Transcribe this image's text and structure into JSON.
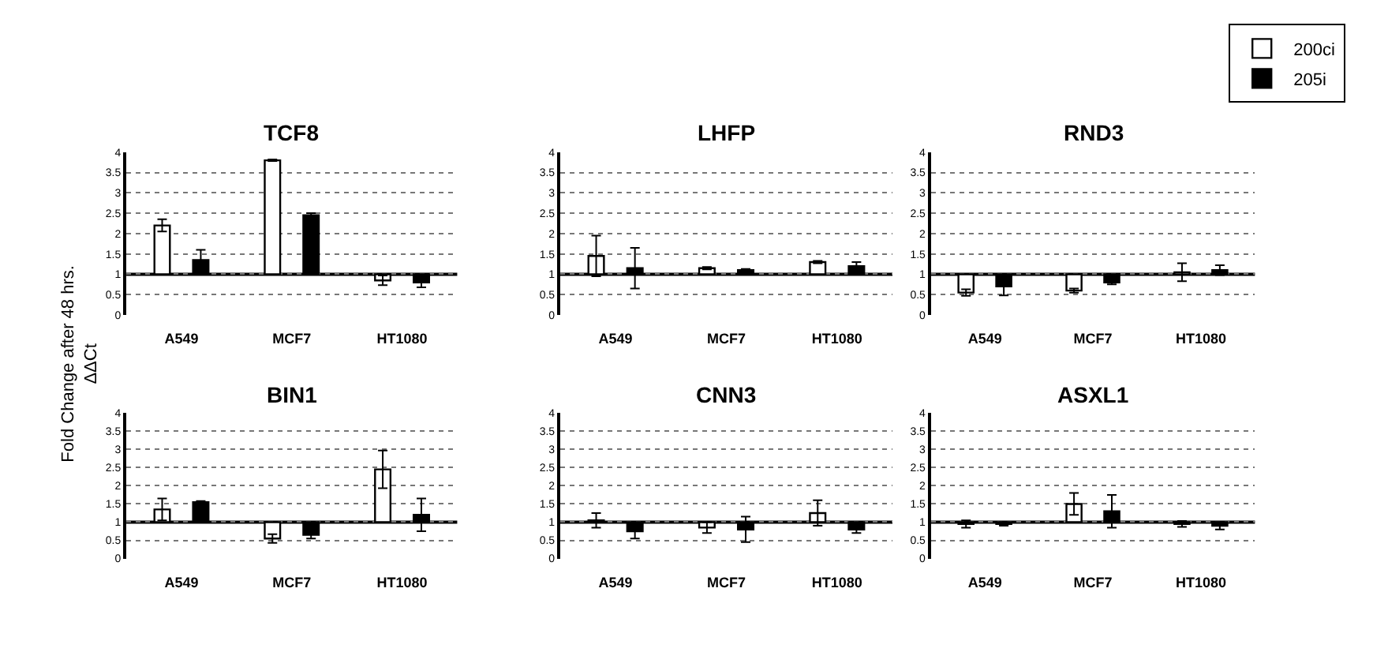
{
  "chart_data": [
    {
      "type": "bar",
      "title": "TCF8",
      "ylabel": "Fold Change after 48 hrs.\nΔΔCt",
      "categories": [
        "A549",
        "MCF7",
        "HT1080"
      ],
      "ylim": [
        0,
        4
      ],
      "yticks": [
        0,
        0.5,
        1,
        1.5,
        2,
        2.5,
        3,
        3.5,
        4
      ],
      "grid": "y",
      "legend": "top right",
      "ref_lines": [
        {
          "axis": "y",
          "value": 1,
          "color": "#000000"
        }
      ],
      "series": [
        {
          "name": "200ci",
          "color": "#ffffff",
          "base": [
            1,
            1,
            1
          ],
          "values": [
            1.2,
            2.8,
            -0.15
          ],
          "errors": [
            0.15,
            0.02,
            0.12
          ]
        },
        {
          "name": "205i",
          "color": "#000000",
          "base": [
            1,
            1,
            1
          ],
          "values": [
            0.35,
            1.45,
            -0.2
          ],
          "errors": [
            0.25,
            0.05,
            0.12
          ]
        }
      ]
    },
    {
      "type": "bar",
      "title": "LHFP",
      "categories": [
        "A549",
        "MCF7",
        "HT1080"
      ],
      "ylim": [
        0,
        4
      ],
      "yticks": [
        0,
        0.5,
        1,
        1.5,
        2,
        2.5,
        3,
        3.5,
        4
      ],
      "grid": "y",
      "ref_lines": [
        {
          "axis": "y",
          "value": 1,
          "color": "#000000"
        }
      ],
      "series": [
        {
          "color": "#ffffff",
          "base": [
            1,
            1,
            1
          ],
          "values": [
            0.45,
            0.15,
            0.3
          ],
          "errors": [
            0.5,
            0.03,
            0.03
          ]
        },
        {
          "color": "#000000",
          "base": [
            1,
            1,
            1
          ],
          "values": [
            0.15,
            0.1,
            0.2
          ],
          "errors": [
            0.5,
            0.03,
            0.1
          ]
        }
      ]
    },
    {
      "type": "bar",
      "title": "RND3",
      "categories": [
        "A549",
        "MCF7",
        "HT1080"
      ],
      "ylim": [
        0,
        4
      ],
      "yticks": [
        0,
        0.5,
        1,
        1.5,
        2,
        2.5,
        3,
        3.5,
        4
      ],
      "grid": "y",
      "ref_lines": [
        {
          "axis": "y",
          "value": 1,
          "color": "#000000"
        }
      ],
      "series": [
        {
          "color": "#ffffff",
          "base": [
            1,
            1,
            1
          ],
          "values": [
            -0.45,
            -0.4,
            0.05
          ],
          "errors": [
            0.08,
            0.05,
            0.22
          ]
        },
        {
          "color": "#000000",
          "base": [
            1,
            1,
            1
          ],
          "values": [
            -0.3,
            -0.2,
            0.1
          ],
          "errors": [
            0.22,
            0.05,
            0.12
          ]
        }
      ]
    },
    {
      "type": "bar",
      "title": "BIN1",
      "categories": [
        "A549",
        "MCF7",
        "HT1080"
      ],
      "ylim": [
        0,
        4
      ],
      "yticks": [
        0,
        0.5,
        1,
        1.5,
        2,
        2.5,
        3,
        3.5,
        4
      ],
      "grid": "y",
      "ref_lines": [
        {
          "axis": "y",
          "value": 1,
          "color": "#000000"
        }
      ],
      "series": [
        {
          "color": "#ffffff",
          "base": [
            1,
            1,
            1
          ],
          "values": [
            0.35,
            -0.45,
            1.45
          ],
          "errors": [
            0.3,
            0.12,
            0.52
          ]
        },
        {
          "color": "#000000",
          "base": [
            1,
            1,
            1
          ],
          "values": [
            0.55,
            -0.35,
            0.2
          ],
          "errors": [
            0.03,
            0.1,
            0.45
          ]
        }
      ]
    },
    {
      "type": "bar",
      "title": "CNN3",
      "categories": [
        "A549",
        "MCF7",
        "HT1080"
      ],
      "ylim": [
        0,
        4
      ],
      "yticks": [
        0,
        0.5,
        1,
        1.5,
        2,
        2.5,
        3,
        3.5,
        4
      ],
      "grid": "y",
      "ref_lines": [
        {
          "axis": "y",
          "value": 1,
          "color": "#000000"
        }
      ],
      "series": [
        {
          "color": "#ffffff",
          "base": [
            1,
            1,
            1
          ],
          "values": [
            0.05,
            -0.15,
            0.25
          ],
          "errors": [
            0.2,
            0.15,
            0.35
          ]
        },
        {
          "color": "#000000",
          "base": [
            1,
            1,
            1
          ],
          "values": [
            -0.25,
            -0.2,
            -0.2
          ],
          "errors": [
            0.2,
            0.35,
            0.1
          ]
        }
      ]
    },
    {
      "type": "bar",
      "title": "ASXL1",
      "categories": [
        "A549",
        "MCF7",
        "HT1080"
      ],
      "ylim": [
        0,
        4
      ],
      "yticks": [
        0,
        0.5,
        1,
        1.5,
        2,
        2.5,
        3,
        3.5,
        4
      ],
      "grid": "y",
      "ref_lines": [
        {
          "axis": "y",
          "value": 1,
          "color": "#000000"
        }
      ],
      "series": [
        {
          "color": "#ffffff",
          "base": [
            1,
            1,
            1
          ],
          "values": [
            -0.05,
            0.5,
            -0.05
          ],
          "errors": [
            0.1,
            0.3,
            0.08
          ]
        },
        {
          "color": "#000000",
          "base": [
            1,
            1,
            1
          ],
          "values": [
            -0.05,
            0.3,
            -0.1
          ],
          "errors": [
            0.05,
            0.45,
            0.1
          ]
        }
      ]
    }
  ]
}
